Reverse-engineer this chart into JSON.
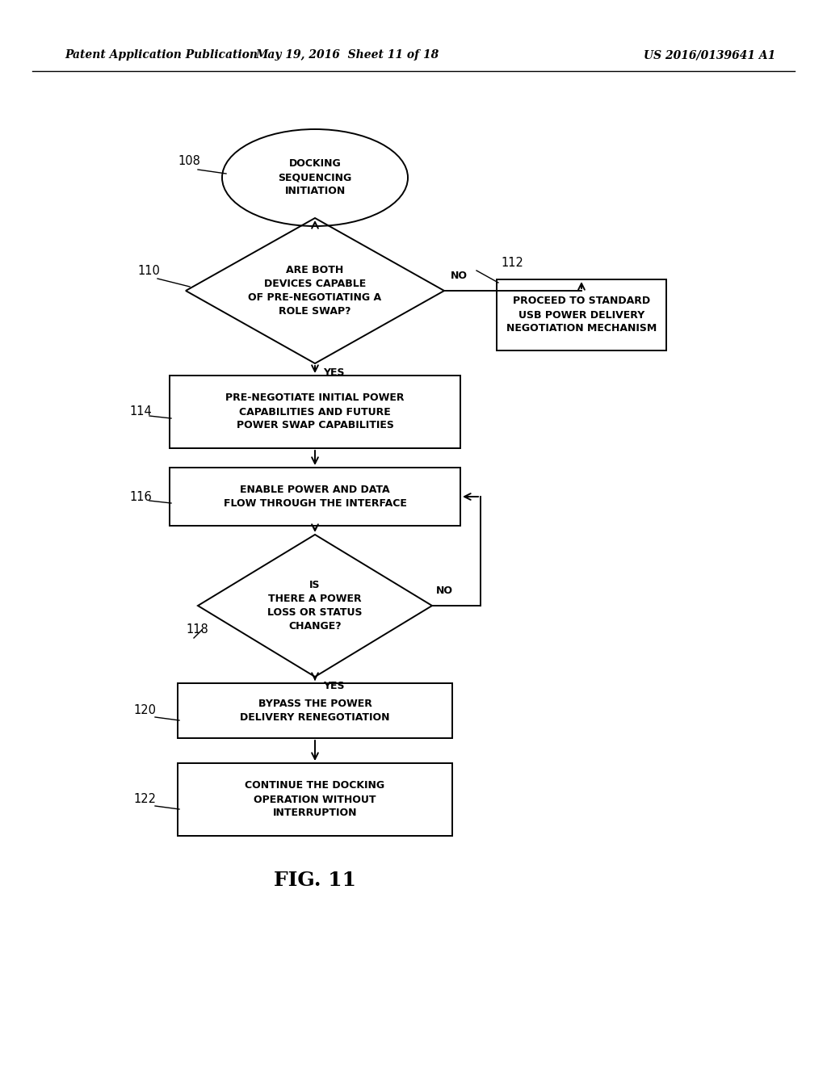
{
  "header_left": "Patent Application Publication",
  "header_mid": "May 19, 2016  Sheet 11 of 18",
  "header_right": "US 2016/0139641 A1",
  "fig_label": "FIG. 11",
  "background": "#ffffff",
  "lw": 1.4,
  "font_size_node": 9.0,
  "font_size_header": 10,
  "font_size_fig": 18,
  "font_size_ref": 10.5,
  "nodes": {
    "start": {
      "label": "DOCKING\nSEQUENCING\nINITIATION",
      "ref": "108"
    },
    "dec1": {
      "label": "ARE BOTH\nDEVICES CAPABLE\nOF PRE-NEGOTIATING A\nROLE SWAP?",
      "ref": "110"
    },
    "box112": {
      "label": "PROCEED TO STANDARD\nUSB POWER DELIVERY\nNEGOTIATION MECHANISM",
      "ref": "112"
    },
    "box114": {
      "label": "PRE-NEGOTIATE INITIAL POWER\nCAPABILITIES AND FUTURE\nPOWER SWAP CAPABILITIES",
      "ref": "114"
    },
    "box116": {
      "label": "ENABLE POWER AND DATA\nFLOW THROUGH THE INTERFACE",
      "ref": "116"
    },
    "dec2": {
      "label": "IS\nTHERE A POWER\nLOSS OR STATUS\nCHANGE?",
      "ref": "118"
    },
    "box120": {
      "label": "BYPASS THE POWER\nDELIVERY RENEGOTIATION",
      "ref": "120"
    },
    "box122": {
      "label": "CONTINUE THE DOCKING\nOPERATION WITHOUT\nINTERRUPTION",
      "ref": "122"
    }
  }
}
